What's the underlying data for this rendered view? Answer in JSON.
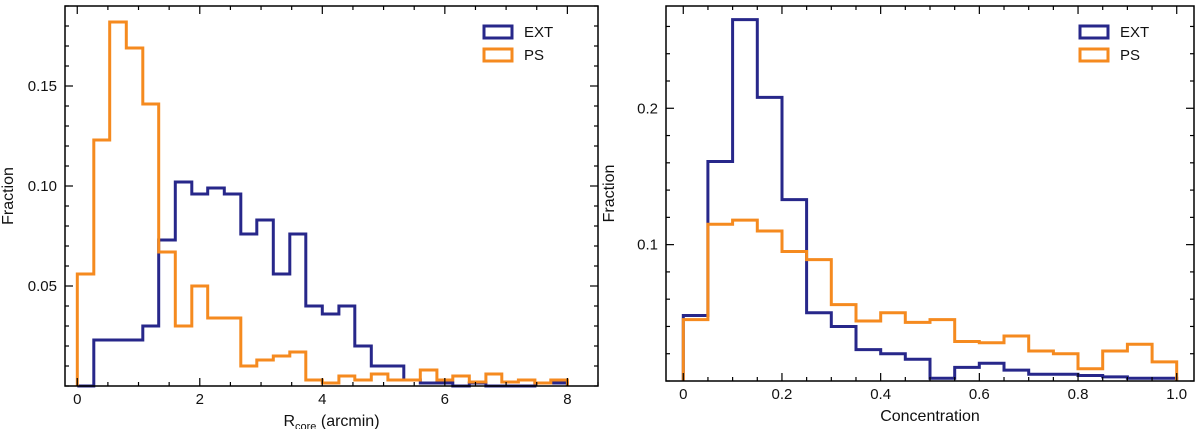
{
  "colors": {
    "EXT": "#27278a",
    "PS": "#f58a1f"
  },
  "chart_data": [
    {
      "type": "histogram",
      "xlabel_main": "R",
      "xlabel_sub": "core",
      "xlabel_rest": " (arcmin)",
      "ylabel": "Fraction",
      "xlim": [
        -0.2,
        8.5
      ],
      "ylim": [
        0,
        0.19
      ],
      "xticks": [
        0,
        2,
        4,
        6,
        8
      ],
      "yticks": [
        0.05,
        0.1,
        0.15
      ],
      "ytick_labels": [
        "0.05",
        "0.10",
        "0.15"
      ],
      "legend_position": "top-right",
      "bin_edges": [
        0,
        0.27,
        0.53,
        0.8,
        1.07,
        1.33,
        1.6,
        1.87,
        2.13,
        2.4,
        2.67,
        2.93,
        3.2,
        3.47,
        3.73,
        4.0,
        4.27,
        4.53,
        4.8,
        5.07,
        5.33,
        5.6,
        5.87,
        6.13,
        6.4,
        6.67,
        6.93,
        7.2,
        7.47,
        7.73,
        8.0
      ],
      "series": [
        {
          "name": "EXT",
          "values": [
            0,
            0.023,
            0.023,
            0.023,
            0.03,
            0.073,
            0.102,
            0.096,
            0.099,
            0.096,
            0.076,
            0.083,
            0.056,
            0.076,
            0.04,
            0.036,
            0.04,
            0.02,
            0.01,
            0.01,
            0.003,
            0.0015,
            0.0015,
            0.0,
            0.0015,
            0.0,
            0.0,
            0.0,
            0.0015,
            0.0015
          ]
        },
        {
          "name": "PS",
          "values": [
            0.056,
            0.123,
            0.182,
            0.169,
            0.141,
            0.067,
            0.03,
            0.05,
            0.034,
            0.034,
            0.01,
            0.013,
            0.015,
            0.017,
            0.003,
            0.0015,
            0.005,
            0.003,
            0.006,
            0.003,
            0.003,
            0.008,
            0.003,
            0.005,
            0.002,
            0.006,
            0.002,
            0.003,
            0.0015,
            0.003
          ]
        }
      ]
    },
    {
      "type": "histogram",
      "xlabel": "Concentration",
      "ylabel": "Fraction",
      "xlim": [
        -0.035,
        1.035
      ],
      "ylim": [
        0,
        0.275
      ],
      "xticks": [
        0,
        0.2,
        0.4,
        0.6,
        0.8,
        1.0
      ],
      "xtick_labels": [
        "0",
        "0.2",
        "0.4",
        "0.6",
        "0.8",
        "1.0"
      ],
      "yticks": [
        0.1,
        0.2
      ],
      "ytick_labels": [
        "0.1",
        "0.2"
      ],
      "legend_position": "top-right",
      "bin_edges": [
        0,
        0.05,
        0.1,
        0.15,
        0.2,
        0.25,
        0.3,
        0.35,
        0.4,
        0.45,
        0.5,
        0.55,
        0.6,
        0.65,
        0.7,
        0.75,
        0.8,
        0.85,
        0.9,
        0.95,
        1.0
      ],
      "series": [
        {
          "name": "EXT",
          "values": [
            0.048,
            0.161,
            0.265,
            0.208,
            0.133,
            0.05,
            0.04,
            0.023,
            0.02,
            0.016,
            0.002,
            0.01,
            0.013,
            0.008,
            0.005,
            0.005,
            0.004,
            0.003,
            0.002,
            0.002
          ]
        },
        {
          "name": "PS",
          "values": [
            0.045,
            0.115,
            0.118,
            0.11,
            0.095,
            0.089,
            0.056,
            0.044,
            0.05,
            0.043,
            0.045,
            0.029,
            0.028,
            0.033,
            0.022,
            0.02,
            0.009,
            0.022,
            0.027,
            0.014
          ]
        }
      ]
    }
  ]
}
